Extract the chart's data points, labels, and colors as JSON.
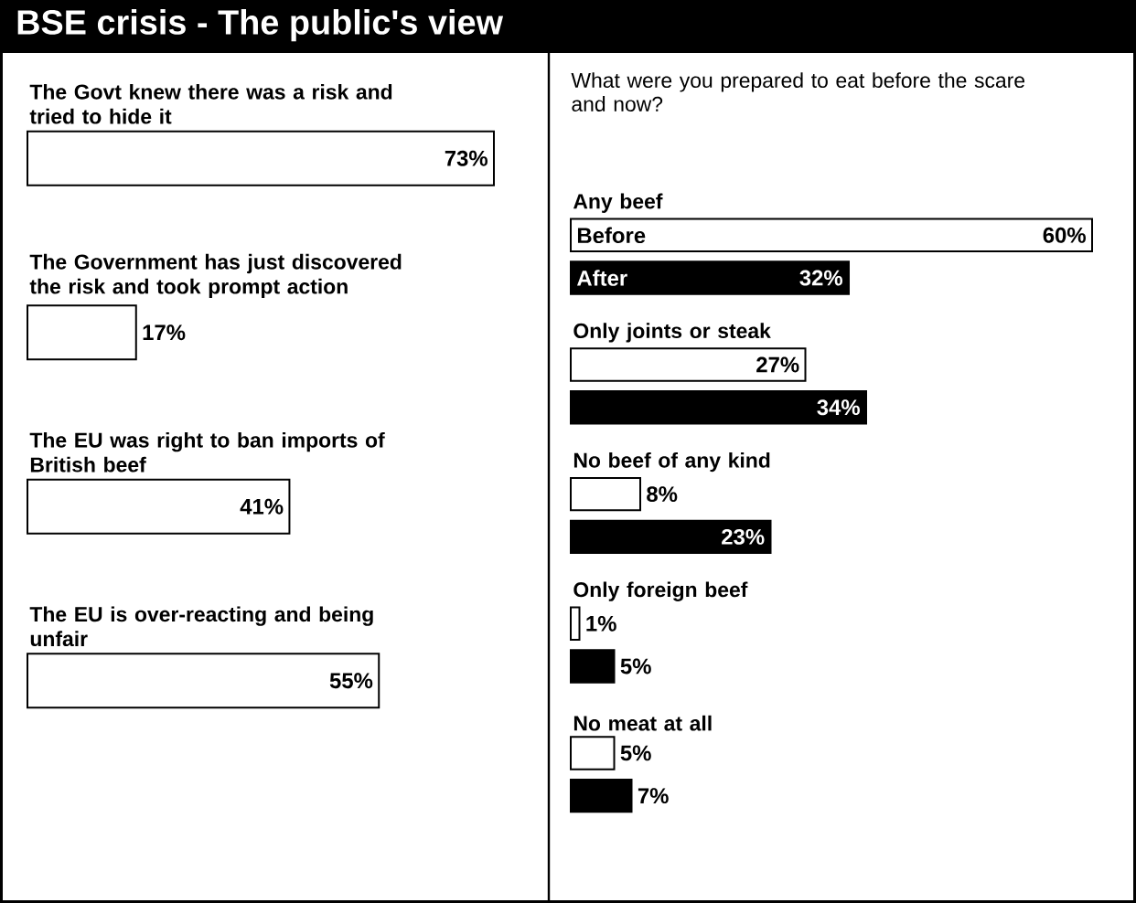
{
  "chart_data": [
    {
      "type": "bar",
      "orientation": "horizontal",
      "title": "BSE crisis - The public's view",
      "categories": [
        "The Govt knew there was a risk and tried to hide it",
        "The Government has just discovered the risk and took prompt action",
        "The EU was right to ban imports of British beef",
        "The EU is over-reacting and being unfair"
      ],
      "values": [
        73,
        17,
        41,
        55
      ],
      "value_labels": [
        "73%",
        "17%",
        "41%",
        "55%"
      ],
      "color": "#ffffff"
    },
    {
      "type": "bar",
      "orientation": "horizontal",
      "title": "What were you prepared to eat before the scare and now?",
      "categories": [
        "Any beef",
        "Only joints or steak",
        "No beef of any kind",
        "Only foreign beef",
        "No meat at all"
      ],
      "series": [
        {
          "name": "Before",
          "color": "#ffffff",
          "values": [
            60,
            27,
            8,
            1,
            5
          ],
          "value_labels": [
            "60%",
            "27%",
            "8%",
            "1%",
            "5%"
          ]
        },
        {
          "name": "After",
          "color": "#000000",
          "values": [
            32,
            34,
            23,
            5,
            7
          ],
          "value_labels": [
            "32%",
            "34%",
            "23%",
            "5%",
            "7%"
          ]
        }
      ]
    }
  ]
}
